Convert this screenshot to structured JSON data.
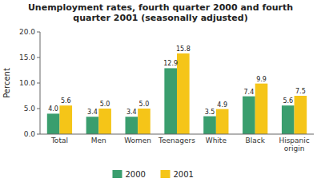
{
  "chart_data": {
    "type": "bar",
    "title": "Unemployment rates, fourth quarter 2000 and fourth\nquarter 2001 (seasonally adjusted)",
    "categories": [
      "Total",
      "Men",
      "Women",
      "Teenagers",
      "White",
      "Black",
      "Hispanic\norigin"
    ],
    "series": [
      {
        "name": "2000",
        "color": "#3A9E6E",
        "values": [
          4.0,
          3.4,
          3.4,
          12.9,
          3.5,
          7.4,
          5.6
        ],
        "value_labels": [
          "4.0",
          "3.4",
          "3.4",
          "12.9",
          "3.5",
          "7.4",
          "5.6"
        ]
      },
      {
        "name": "2001",
        "color": "#F5C518",
        "values": [
          5.6,
          5.0,
          5.0,
          15.8,
          4.9,
          9.9,
          7.5
        ],
        "value_labels": [
          "5.6",
          "5.0",
          "5.0",
          "15.8",
          "4.9",
          "9.9",
          "7.5"
        ]
      }
    ],
    "ylabel": "Percent",
    "ylim": [
      0,
      20.0
    ],
    "yticks": [
      {
        "value": 0.0,
        "label": "0.0"
      },
      {
        "value": 5.0,
        "label": "5.0"
      },
      {
        "value": 10.0,
        "label": "10.0"
      },
      {
        "value": 15.0,
        "label": "15.0"
      },
      {
        "value": 20.0,
        "label": "20.0"
      }
    ],
    "data_labels": true,
    "legend": "bottom",
    "grid": false
  }
}
